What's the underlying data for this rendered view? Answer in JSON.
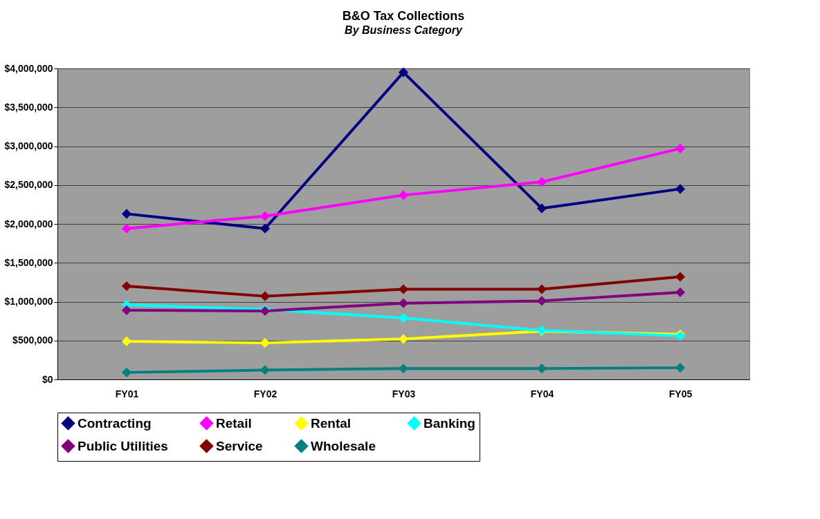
{
  "chart_data": {
    "type": "line",
    "title": "B&O Tax Collections",
    "subtitle": "By Business Category",
    "categories": [
      "FY01",
      "FY02",
      "FY03",
      "FY04",
      "FY05"
    ],
    "series": [
      {
        "name": "Contracting",
        "color": "#000080",
        "values": [
          2130000,
          1940000,
          3950000,
          2200000,
          2450000
        ]
      },
      {
        "name": "Retail",
        "color": "#ff00ff",
        "values": [
          1940000,
          2100000,
          2370000,
          2540000,
          2970000
        ]
      },
      {
        "name": "Rental",
        "color": "#ffff00",
        "values": [
          490000,
          470000,
          520000,
          620000,
          580000
        ]
      },
      {
        "name": "Banking",
        "color": "#00ffff",
        "values": [
          960000,
          900000,
          790000,
          630000,
          560000
        ]
      },
      {
        "name": "Public Utilities",
        "color": "#800080",
        "values": [
          890000,
          880000,
          980000,
          1010000,
          1120000
        ]
      },
      {
        "name": "Service",
        "color": "#800000",
        "values": [
          1200000,
          1070000,
          1160000,
          1160000,
          1320000
        ]
      },
      {
        "name": "Wholesale",
        "color": "#008080",
        "values": [
          90000,
          120000,
          140000,
          140000,
          150000
        ]
      }
    ],
    "ylim": [
      0,
      4000000
    ],
    "yticks": [
      {
        "value": 0,
        "label": "$0"
      },
      {
        "value": 500000,
        "label": "$500,000"
      },
      {
        "value": 1000000,
        "label": "$1,000,000"
      },
      {
        "value": 1500000,
        "label": "$1,500,000"
      },
      {
        "value": 2000000,
        "label": "$2,000,000"
      },
      {
        "value": 2500000,
        "label": "$2,500,000"
      },
      {
        "value": 3000000,
        "label": "$3,000,000"
      },
      {
        "value": 3500000,
        "label": "$3,500,000"
      },
      {
        "value": 4000000,
        "label": "$4,000,000"
      }
    ],
    "grid": "y",
    "legend": "bottom",
    "marker": "diamond",
    "line_style": "solid"
  }
}
